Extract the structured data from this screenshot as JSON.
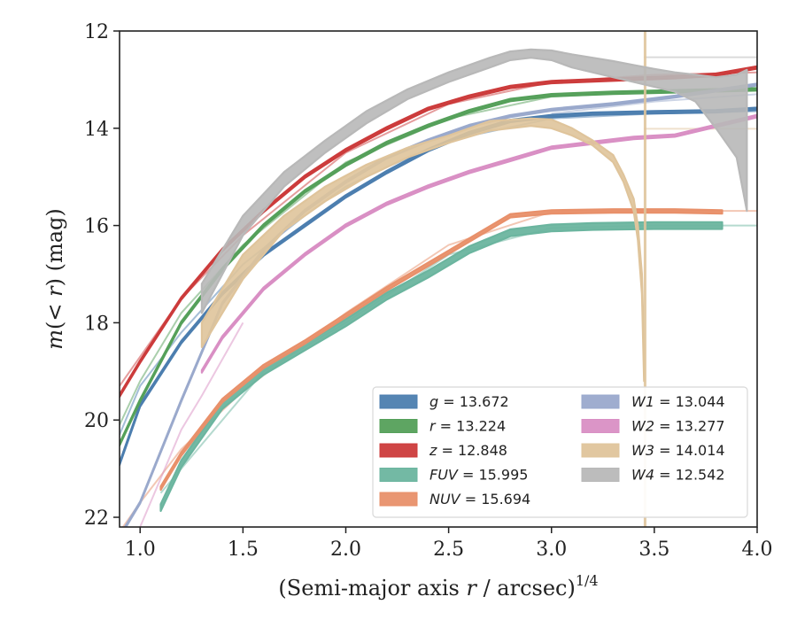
{
  "chart_data": {
    "type": "line",
    "xlabel_main": "(Semi-major axis ",
    "xlabel_var": "r",
    "xlabel_tail": " / arcsec)",
    "xlabel_sup": "1/4",
    "ylabel_pre": "m(< ",
    "ylabel_var": "r",
    "ylabel_post": ") (mag)",
    "xlim": [
      0.9,
      4.0
    ],
    "ylim": [
      22.2,
      12.0
    ],
    "y_inverted": true,
    "grid": false,
    "legend_position": "lower-right",
    "x_ticks": [
      {
        "value": 1.0,
        "label": "1.0"
      },
      {
        "value": 1.5,
        "label": "1.5"
      },
      {
        "value": 2.0,
        "label": "2.0"
      },
      {
        "value": 2.5,
        "label": "2.5"
      },
      {
        "value": 3.0,
        "label": "3.0"
      },
      {
        "value": 3.5,
        "label": "3.5"
      },
      {
        "value": 4.0,
        "label": "4.0"
      }
    ],
    "y_ticks": [
      {
        "value": 12,
        "label": "12"
      },
      {
        "value": 14,
        "label": "14"
      },
      {
        "value": 16,
        "label": "16"
      },
      {
        "value": 18,
        "label": "18"
      },
      {
        "value": 20,
        "label": "20"
      },
      {
        "value": 22,
        "label": "22"
      }
    ],
    "series": [
      {
        "name": "g",
        "legend_value": "13.672",
        "color": "#4c7eaf",
        "width": 0.05,
        "x": [
          0.9,
          1.0,
          1.2,
          1.4,
          1.6,
          1.8,
          2.0,
          2.2,
          2.4,
          2.6,
          2.8,
          3.0,
          3.2,
          3.5,
          3.8,
          4.0
        ],
        "y": [
          20.9,
          19.7,
          18.4,
          17.4,
          16.6,
          16.0,
          15.4,
          14.9,
          14.45,
          14.1,
          13.85,
          13.75,
          13.7,
          13.67,
          13.65,
          13.6
        ],
        "faint": {
          "x": [
            0.9,
            1.0,
            1.2,
            1.5,
            1.8,
            2.0,
            2.2,
            2.5,
            3.0,
            3.5,
            4.0
          ],
          "y": [
            20.3,
            19.3,
            18.2,
            16.8,
            15.8,
            15.2,
            14.8,
            14.25,
            13.8,
            13.7,
            13.65
          ]
        }
      },
      {
        "name": "r",
        "legend_value": "13.224",
        "color": "#55a05a",
        "width": 0.05,
        "x": [
          0.9,
          1.0,
          1.2,
          1.4,
          1.6,
          1.8,
          2.0,
          2.2,
          2.4,
          2.6,
          2.8,
          3.0,
          3.3,
          3.6,
          4.0
        ],
        "y": [
          20.5,
          19.6,
          18.0,
          16.9,
          16.0,
          15.3,
          14.75,
          14.3,
          13.95,
          13.65,
          13.42,
          13.32,
          13.27,
          13.24,
          13.2
        ],
        "faint": {
          "x": [
            0.9,
            1.0,
            1.2,
            1.5,
            2.0,
            2.5,
            3.0,
            3.5,
            4.0
          ],
          "y": [
            20.1,
            19.2,
            17.8,
            16.4,
            14.7,
            13.8,
            13.35,
            13.25,
            13.22
          ]
        }
      },
      {
        "name": "z",
        "legend_value": "12.848",
        "color": "#cc3b3b",
        "width": 0.05,
        "x": [
          0.9,
          1.0,
          1.2,
          1.4,
          1.6,
          1.8,
          2.0,
          2.2,
          2.4,
          2.6,
          2.8,
          3.0,
          3.3,
          3.6,
          3.8,
          4.0
        ],
        "y": [
          19.5,
          18.8,
          17.5,
          16.5,
          15.7,
          15.0,
          14.45,
          14.0,
          13.6,
          13.35,
          13.15,
          13.05,
          13.0,
          12.95,
          12.9,
          12.75
        ],
        "faint": {
          "x": [
            0.9,
            1.0,
            1.2,
            1.5,
            2.0,
            2.5,
            3.0,
            3.5,
            4.0
          ],
          "y": [
            19.3,
            18.7,
            17.5,
            16.2,
            14.5,
            13.5,
            13.05,
            12.9,
            12.85
          ]
        }
      },
      {
        "name": "FUV",
        "legend_value": "15.995",
        "color": "#6bb59f",
        "width": 0.14,
        "x": [
          1.1,
          1.2,
          1.4,
          1.6,
          1.8,
          2.0,
          2.2,
          2.4,
          2.6,
          2.8,
          3.0,
          3.2,
          3.5,
          3.83
        ],
        "y": [
          21.8,
          20.9,
          19.7,
          19.0,
          18.5,
          18.0,
          17.45,
          17.0,
          16.5,
          16.15,
          16.05,
          16.02,
          16.0,
          16.0
        ],
        "faint": {
          "x": [
            1.1,
            1.3,
            1.6,
            2.0,
            2.5,
            3.0,
            3.5,
            4.0
          ],
          "y": [
            21.5,
            20.5,
            19.0,
            18.0,
            16.6,
            16.05,
            16.0,
            16.0
          ]
        }
      },
      {
        "name": "NUV",
        "legend_value": "15.694",
        "color": "#e8906a",
        "width": 0.07,
        "x": [
          1.1,
          1.2,
          1.4,
          1.6,
          1.8,
          2.0,
          2.2,
          2.4,
          2.6,
          2.8,
          3.0,
          3.3,
          3.6,
          3.83
        ],
        "y": [
          21.4,
          20.7,
          19.6,
          18.9,
          18.4,
          17.85,
          17.3,
          16.8,
          16.3,
          15.8,
          15.72,
          15.7,
          15.7,
          15.72
        ],
        "faint": {
          "x": [
            0.9,
            1.0,
            1.2,
            1.5,
            2.0,
            2.5,
            3.0,
            3.5,
            4.0
          ],
          "y": [
            22.3,
            21.7,
            20.6,
            19.4,
            17.8,
            16.4,
            15.72,
            15.7,
            15.7
          ]
        }
      },
      {
        "name": "W1",
        "legend_value": "13.044",
        "color": "#9aa9cc",
        "width": 0.04,
        "x": [
          0.9,
          1.0,
          1.2,
          1.4,
          1.6,
          1.8,
          2.0,
          2.2,
          2.4,
          2.6,
          2.8,
          3.0,
          3.3,
          3.6,
          4.0
        ],
        "y": [
          22.4,
          21.7,
          19.6,
          17.6,
          16.5,
          15.7,
          15.1,
          14.6,
          14.25,
          13.95,
          13.75,
          13.62,
          13.5,
          13.35,
          13.1
        ],
        "faint": {
          "x": [
            3.0,
            3.5,
            4.0
          ],
          "y": [
            13.7,
            13.45,
            13.3
          ]
        }
      },
      {
        "name": "W2",
        "legend_value": "13.277",
        "color": "#d98fc4",
        "width": 0.05,
        "x": [
          1.3,
          1.4,
          1.6,
          1.8,
          2.0,
          2.2,
          2.4,
          2.6,
          2.8,
          3.0,
          3.2,
          3.4,
          3.6,
          3.8,
          4.0
        ],
        "y": [
          19.0,
          18.3,
          17.3,
          16.6,
          16.0,
          15.55,
          15.2,
          14.9,
          14.65,
          14.4,
          14.3,
          14.2,
          14.15,
          13.95,
          13.75
        ],
        "faint": {
          "x": [
            1.0,
            1.1,
            1.2,
            1.3,
            1.5
          ],
          "y": [
            22.2,
            21.2,
            20.2,
            19.5,
            18.0
          ]
        }
      },
      {
        "name": "W3",
        "legend_value": "14.014",
        "color": "#dfc49b",
        "band": true,
        "x": [
          1.3,
          1.4,
          1.5,
          1.7,
          1.9,
          2.1,
          2.3,
          2.5,
          2.7,
          2.9,
          3.0,
          3.1,
          3.2,
          3.3,
          3.35,
          3.4,
          3.42,
          3.44,
          3.45
        ],
        "ylo": [
          18.5,
          17.8,
          17.1,
          16.1,
          15.5,
          15.0,
          14.6,
          14.3,
          14.05,
          13.95,
          14.0,
          14.15,
          14.35,
          14.7,
          15.1,
          15.7,
          16.3,
          17.4,
          19.2
        ],
        "yhi": [
          18.0,
          17.3,
          16.6,
          15.8,
          15.2,
          14.75,
          14.4,
          14.15,
          13.85,
          13.8,
          13.82,
          14.0,
          14.25,
          14.55,
          14.95,
          15.45,
          16.0,
          17.0,
          18.6
        ],
        "vline_x": 3.455,
        "faint": {
          "x": [
            3.45,
            3.7,
            4.0
          ],
          "y": [
            14.01,
            14.01,
            14.01
          ]
        }
      },
      {
        "name": "W4",
        "legend_value": "12.542",
        "color": "#b8b8b8",
        "band": true,
        "x": [
          1.3,
          1.5,
          1.7,
          1.9,
          2.1,
          2.3,
          2.5,
          2.7,
          2.8,
          2.9,
          3.0,
          3.1,
          3.2,
          3.3,
          3.4,
          3.5,
          3.6,
          3.7,
          3.8,
          3.9,
          3.95
        ],
        "ylo": [
          17.8,
          16.2,
          15.2,
          14.5,
          13.9,
          13.4,
          13.05,
          12.75,
          12.6,
          12.55,
          12.6,
          12.75,
          12.85,
          12.95,
          13.05,
          13.15,
          13.25,
          13.45,
          14.0,
          14.6,
          15.7
        ],
        "yhi": [
          17.2,
          15.8,
          14.9,
          14.25,
          13.65,
          13.2,
          12.85,
          12.55,
          12.42,
          12.38,
          12.4,
          12.48,
          12.55,
          12.62,
          12.7,
          12.78,
          12.85,
          12.9,
          12.95,
          12.9,
          12.8
        ],
        "faint": {
          "x": [
            3.45,
            3.7,
            4.0
          ],
          "y": [
            12.54,
            12.54,
            12.54
          ]
        }
      }
    ]
  }
}
